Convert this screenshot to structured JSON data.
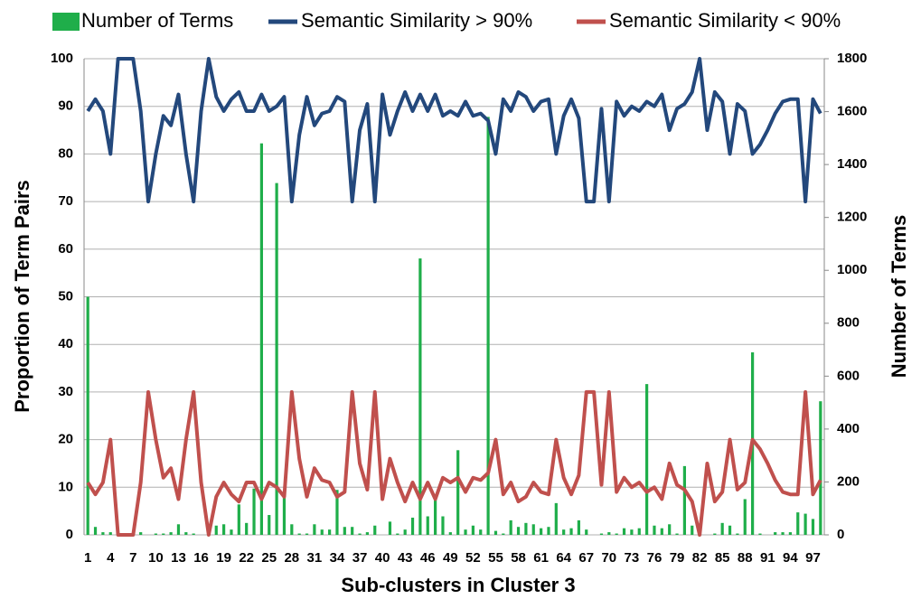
{
  "chart_data": {
    "type": "combo",
    "xlabel": "Sub-clusters in Cluster 3",
    "ylabel": "Proportion of Term Pairs",
    "y2label": "Number of Terms",
    "categories": [
      1,
      null,
      null,
      4,
      null,
      null,
      7,
      null,
      null,
      10,
      null,
      null,
      13,
      null,
      null,
      16,
      null,
      null,
      19,
      null,
      null,
      22,
      null,
      null,
      25,
      null,
      null,
      28,
      null,
      null,
      31,
      null,
      null,
      34,
      null,
      null,
      37,
      null,
      null,
      40,
      null,
      null,
      43,
      null,
      null,
      46,
      null,
      null,
      49,
      null,
      null,
      52,
      null,
      null,
      55,
      null,
      null,
      58,
      null,
      null,
      61,
      null,
      null,
      64,
      null,
      null,
      67,
      null,
      null,
      70,
      null,
      null,
      73,
      null,
      null,
      76,
      null,
      null,
      79,
      null,
      null,
      82,
      null,
      null,
      85,
      null,
      null,
      88,
      null,
      null,
      91,
      null,
      null,
      94,
      null,
      null,
      97,
      null
    ],
    "ylim": [
      0,
      100
    ],
    "yticks": [
      0,
      10,
      20,
      30,
      40,
      50,
      60,
      70,
      80,
      90,
      100
    ],
    "y2lim": [
      0,
      1800
    ],
    "y2ticks": [
      0,
      200,
      400,
      600,
      800,
      1000,
      1200,
      1400,
      1600,
      1800
    ],
    "grid": true,
    "legend": "top",
    "series": [
      {
        "name": "Number of Terms",
        "type": "bar",
        "axis": "y2",
        "color": "#1fae4a",
        "values": [
          900,
          30,
          10,
          10,
          5,
          0,
          0,
          10,
          0,
          5,
          5,
          10,
          40,
          10,
          5,
          0,
          25,
          35,
          40,
          20,
          115,
          45,
          175,
          1480,
          75,
          1330,
          140,
          40,
          5,
          5,
          40,
          20,
          20,
          170,
          30,
          30,
          5,
          10,
          35,
          0,
          50,
          5,
          20,
          65,
          1045,
          70,
          135,
          70,
          10,
          320,
          20,
          35,
          20,
          1580,
          15,
          5,
          55,
          30,
          45,
          40,
          25,
          30,
          120,
          20,
          25,
          55,
          20,
          0,
          5,
          10,
          5,
          25,
          20,
          25,
          570,
          35,
          25,
          40,
          5,
          260,
          35,
          40,
          0,
          5,
          45,
          35,
          5,
          135,
          690,
          5,
          0,
          10,
          10,
          10,
          85,
          80,
          60,
          505
        ]
      },
      {
        "name": "Semantic Similarity > 90%",
        "type": "line",
        "color": "#23487c",
        "values": [
          89,
          91.5,
          89,
          80,
          100,
          100,
          100,
          89,
          70,
          80,
          88,
          86,
          92.5,
          80,
          70,
          89,
          100,
          92,
          89,
          91.5,
          93,
          89,
          89,
          92.5,
          89,
          90,
          92,
          70,
          84,
          92,
          86,
          88.5,
          89,
          92,
          91,
          70,
          85,
          90.5,
          70,
          92.5,
          84,
          89,
          93,
          89,
          92.5,
          89,
          92.5,
          88,
          89,
          88,
          91,
          88,
          88.5,
          87,
          80,
          91.5,
          89,
          93,
          92,
          89,
          91,
          91.5,
          80,
          88,
          91.5,
          87.5,
          70,
          70,
          89.5,
          70,
          91,
          88,
          90,
          89,
          91,
          90,
          92.5,
          85,
          89.5,
          90.5,
          93,
          100,
          85,
          93,
          91,
          80,
          90.5,
          89,
          80,
          82,
          85,
          88.5,
          91,
          91.5,
          91.5,
          70,
          91.5,
          88.5
        ]
      },
      {
        "name": "Semantic Similarity < 90%",
        "type": "line",
        "color": "#c0504d",
        "values": [
          11,
          8.5,
          11,
          20,
          0,
          0,
          0,
          11,
          30,
          20,
          12,
          14,
          7.5,
          20,
          30,
          11,
          0,
          8,
          11,
          8.5,
          7,
          11,
          11,
          7.5,
          11,
          10,
          8,
          30,
          16,
          8,
          14,
          11.5,
          11,
          8,
          9,
          30,
          15,
          9.5,
          30,
          7.5,
          16,
          11,
          7,
          11,
          7.5,
          11,
          7.5,
          12,
          11,
          12,
          9,
          12,
          11.5,
          13,
          20,
          8.5,
          11,
          7,
          8,
          11,
          9,
          8.5,
          20,
          12,
          8.5,
          12.5,
          30,
          30,
          10.5,
          30,
          9,
          12,
          10,
          11,
          9,
          10,
          7.5,
          15,
          10.5,
          9.5,
          7,
          0,
          15,
          7,
          9,
          20,
          9.5,
          11,
          20,
          18,
          15,
          11.5,
          9,
          8.5,
          8.5,
          30,
          8.5,
          11.5
        ]
      }
    ]
  }
}
